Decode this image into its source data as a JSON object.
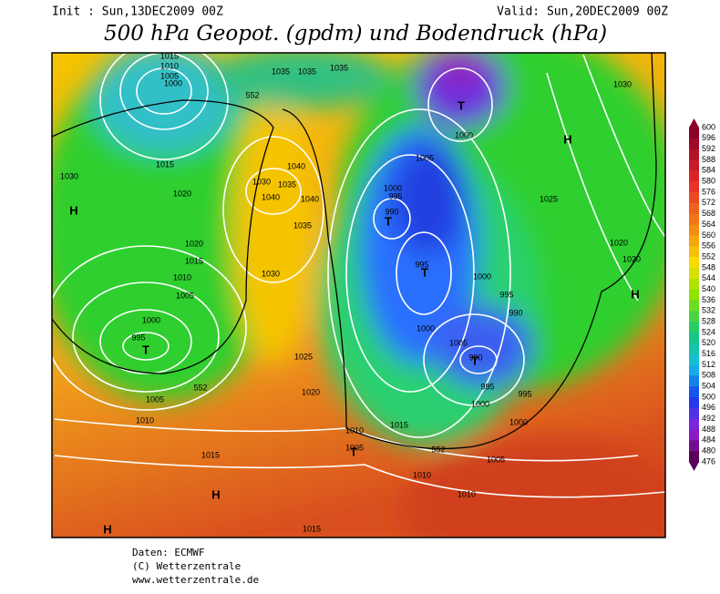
{
  "header": {
    "init": "Init : Sun,13DEC2009 00Z",
    "valid": "Valid: Sun,20DEC2009 00Z",
    "title": "500 hPa Geopot. (gpdm) und Bodendruck (hPa)"
  },
  "map": {
    "contour_labels": [
      "1015",
      "1010",
      "1005",
      "1000",
      "1035",
      "1035",
      "1035",
      "552",
      "1030",
      "1015",
      "1020",
      "1030",
      "1035",
      "1040",
      "1040",
      "1040",
      "1035",
      "1020",
      "1015",
      "1010",
      "1005",
      "1000",
      "995",
      "1030",
      "1025",
      "1020",
      "1005",
      "552",
      "1010",
      "1015",
      "1010",
      "1015",
      "1005",
      "552",
      "1010",
      "1010",
      "1015",
      "1005",
      "1000",
      "1000",
      "995",
      "995",
      "1005",
      "990",
      "1000",
      "995",
      "990",
      "1000",
      "995",
      "990",
      "995",
      "1000",
      "1005",
      "1000",
      "1025",
      "1020",
      "1020",
      "1030"
    ],
    "centers": [
      "H",
      "H",
      "H",
      "H",
      "H",
      "T",
      "T",
      "T",
      "T",
      "T",
      "T"
    ]
  },
  "colorbar": {
    "labels": [
      "600",
      "596",
      "592",
      "588",
      "584",
      "580",
      "576",
      "572",
      "568",
      "564",
      "560",
      "556",
      "552",
      "548",
      "544",
      "540",
      "536",
      "532",
      "528",
      "524",
      "520",
      "516",
      "512",
      "508",
      "504",
      "500",
      "496",
      "492",
      "488",
      "484",
      "480",
      "476"
    ]
  },
  "footer": {
    "source": "Daten: ECMWF",
    "copyright": "(C) Wetterzentrale",
    "url": "www.wetterzentrale.de"
  }
}
